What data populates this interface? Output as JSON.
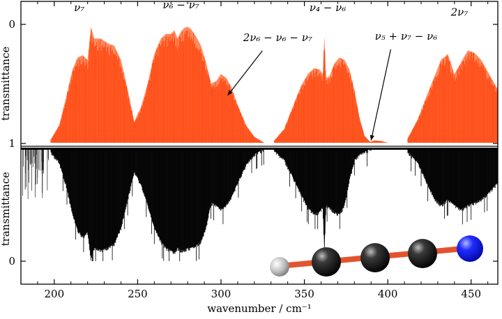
{
  "chart_data": {
    "type": "area",
    "xlabel": "wavenumber / cm⁻¹",
    "xlim": [
      180,
      466
    ],
    "x_ticks": [
      200,
      250,
      300,
      350,
      400,
      450
    ],
    "grid": false,
    "upper_panel": {
      "ylabel": "transmittance",
      "y_ticks": [
        "0",
        "1"
      ],
      "color": "#ff4a14",
      "color_light": "#ff8a5e",
      "series": [
        {
          "values_x": [
            198,
            203,
            207,
            211,
            214,
            217,
            220,
            222,
            224,
            228,
            232,
            236,
            240,
            244,
            248,
            252,
            256,
            260,
            264,
            267,
            270,
            272,
            274,
            276,
            278,
            280,
            282,
            285,
            288,
            291,
            294,
            297,
            300,
            303,
            306,
            310,
            315,
            320,
            326
          ],
          "values_y": [
            0.97,
            0.85,
            0.62,
            0.38,
            0.28,
            0.26,
            0.3,
            0.02,
            0.12,
            0.12,
            0.16,
            0.18,
            0.3,
            0.55,
            0.82,
            0.7,
            0.5,
            0.25,
            0.12,
            0.08,
            0.08,
            0.05,
            0.12,
            0.06,
            0.03,
            0.02,
            0.04,
            0.1,
            0.18,
            0.32,
            0.5,
            0.48,
            0.42,
            0.45,
            0.52,
            0.68,
            0.85,
            0.95,
            1.0
          ]
        },
        {
          "values_x": [
            332,
            338,
            344,
            348,
            352,
            356,
            359,
            361,
            362,
            363,
            365,
            368,
            371,
            374,
            377,
            380,
            383,
            386,
            390
          ],
          "values_y": [
            0.98,
            0.88,
            0.66,
            0.52,
            0.42,
            0.37,
            0.38,
            0.42,
            0.1,
            0.45,
            0.44,
            0.33,
            0.28,
            0.3,
            0.38,
            0.55,
            0.78,
            0.94,
            1.0
          ]
        },
        {
          "values_x": [
            388,
            392,
            396,
            400
          ],
          "values_y": [
            1.0,
            0.98,
            0.985,
            1.0
          ]
        },
        {
          "values_x": [
            412,
            418,
            424,
            428,
            432,
            436,
            440,
            444,
            448,
            452,
            456,
            460,
            466
          ],
          "values_y": [
            0.96,
            0.8,
            0.58,
            0.44,
            0.3,
            0.25,
            0.42,
            0.32,
            0.22,
            0.24,
            0.3,
            0.4,
            0.55
          ]
        }
      ]
    },
    "lower_panel": {
      "ylabel": "transmittance",
      "y_ticks": [
        "1",
        "0"
      ],
      "color": "#000000",
      "series": [
        {
          "values_x": [
            198,
            203,
            207,
            211,
            214,
            217,
            220,
            222,
            224,
            228,
            232,
            236,
            240,
            244,
            248,
            252,
            256,
            260,
            264,
            267,
            270,
            272,
            274,
            276,
            278,
            280,
            282,
            285,
            288,
            291,
            294,
            297,
            300,
            303,
            306,
            310,
            315,
            320,
            326
          ],
          "values_y": [
            0.97,
            0.88,
            0.68,
            0.42,
            0.28,
            0.22,
            0.26,
            0.02,
            0.12,
            0.1,
            0.12,
            0.16,
            0.3,
            0.55,
            0.8,
            0.68,
            0.5,
            0.3,
            0.18,
            0.12,
            0.1,
            0.08,
            0.12,
            0.1,
            0.1,
            0.12,
            0.12,
            0.14,
            0.18,
            0.3,
            0.52,
            0.5,
            0.46,
            0.5,
            0.56,
            0.7,
            0.86,
            0.95,
            1.0
          ]
        },
        {
          "values_x": [
            332,
            338,
            344,
            348,
            352,
            356,
            359,
            361,
            362,
            363,
            365,
            368,
            371,
            374,
            377,
            380,
            383,
            386,
            390
          ],
          "values_y": [
            0.98,
            0.9,
            0.72,
            0.6,
            0.48,
            0.42,
            0.44,
            0.48,
            0.08,
            0.5,
            0.48,
            0.44,
            0.42,
            0.5,
            0.72,
            0.9,
            0.95,
            0.97,
            1.0
          ]
        },
        {
          "values_x": [
            412,
            418,
            424,
            428,
            432,
            436,
            440,
            444,
            448,
            452,
            456,
            460,
            466
          ],
          "values_y": [
            0.97,
            0.88,
            0.68,
            0.56,
            0.5,
            0.55,
            0.5,
            0.46,
            0.5,
            0.52,
            0.55,
            0.6,
            0.7
          ]
        }
      ]
    },
    "annotations": [
      {
        "text": "ν₇",
        "x": 215,
        "y_frac": 0.93
      },
      {
        "text": "ν₆ − ν₇",
        "x": 276,
        "y_frac": 0.95
      },
      {
        "text": "2ν₆ − ν₆ − ν₇",
        "x": 334,
        "y_frac": 0.72,
        "arrow_to_x": 304,
        "arrow_to_y_frac": 0.4
      },
      {
        "text": "ν₄ − ν₆",
        "x": 364,
        "y_frac": 0.93
      },
      {
        "text": "ν₅ + ν₇ − ν₆",
        "x": 411,
        "y_frac": 0.73,
        "arrow_to_x": 390,
        "arrow_to_y_frac": 0.02
      },
      {
        "text": "2ν₇",
        "x": 443,
        "y_frac": 0.9
      }
    ]
  }
}
